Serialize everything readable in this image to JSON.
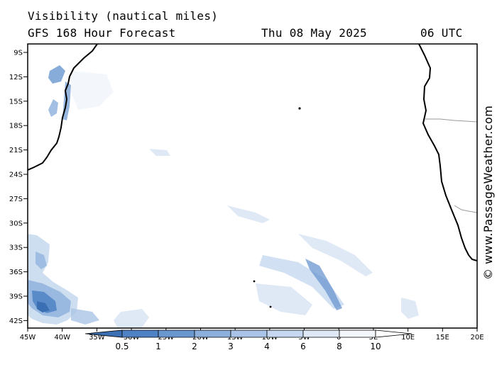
{
  "header": {
    "parameter": "Visibility (nautical miles)",
    "model": "GFS 168 Hour Forecast",
    "date": "Thu 08 May 2025",
    "time": "06 UTC"
  },
  "watermark": "© www.PassageWeather.com",
  "map": {
    "lon_range": [
      -45,
      20
    ],
    "lat_range": [
      -43,
      -8
    ],
    "lat_ticks": [
      "9S",
      "12S",
      "15S",
      "18S",
      "21S",
      "24S",
      "27S",
      "30S",
      "33S",
      "36S",
      "39S",
      "42S"
    ],
    "lon_ticks": [
      "45W",
      "40W",
      "35W",
      "30W",
      "25W",
      "20W",
      "15W",
      "10W",
      "5W",
      "0",
      "5E",
      "10E",
      "15E",
      "20E"
    ]
  },
  "legend": {
    "labels": [
      "0.5",
      "1",
      "2",
      "3",
      "4",
      "6",
      "8",
      "10"
    ],
    "colors": [
      "#3a6fb4",
      "#4f82c4",
      "#6a97d0",
      "#8cafdc",
      "#a9c4e6",
      "#c6d8ef",
      "#dfe9f6",
      "#f3f7fc",
      "#ffffff"
    ]
  }
}
